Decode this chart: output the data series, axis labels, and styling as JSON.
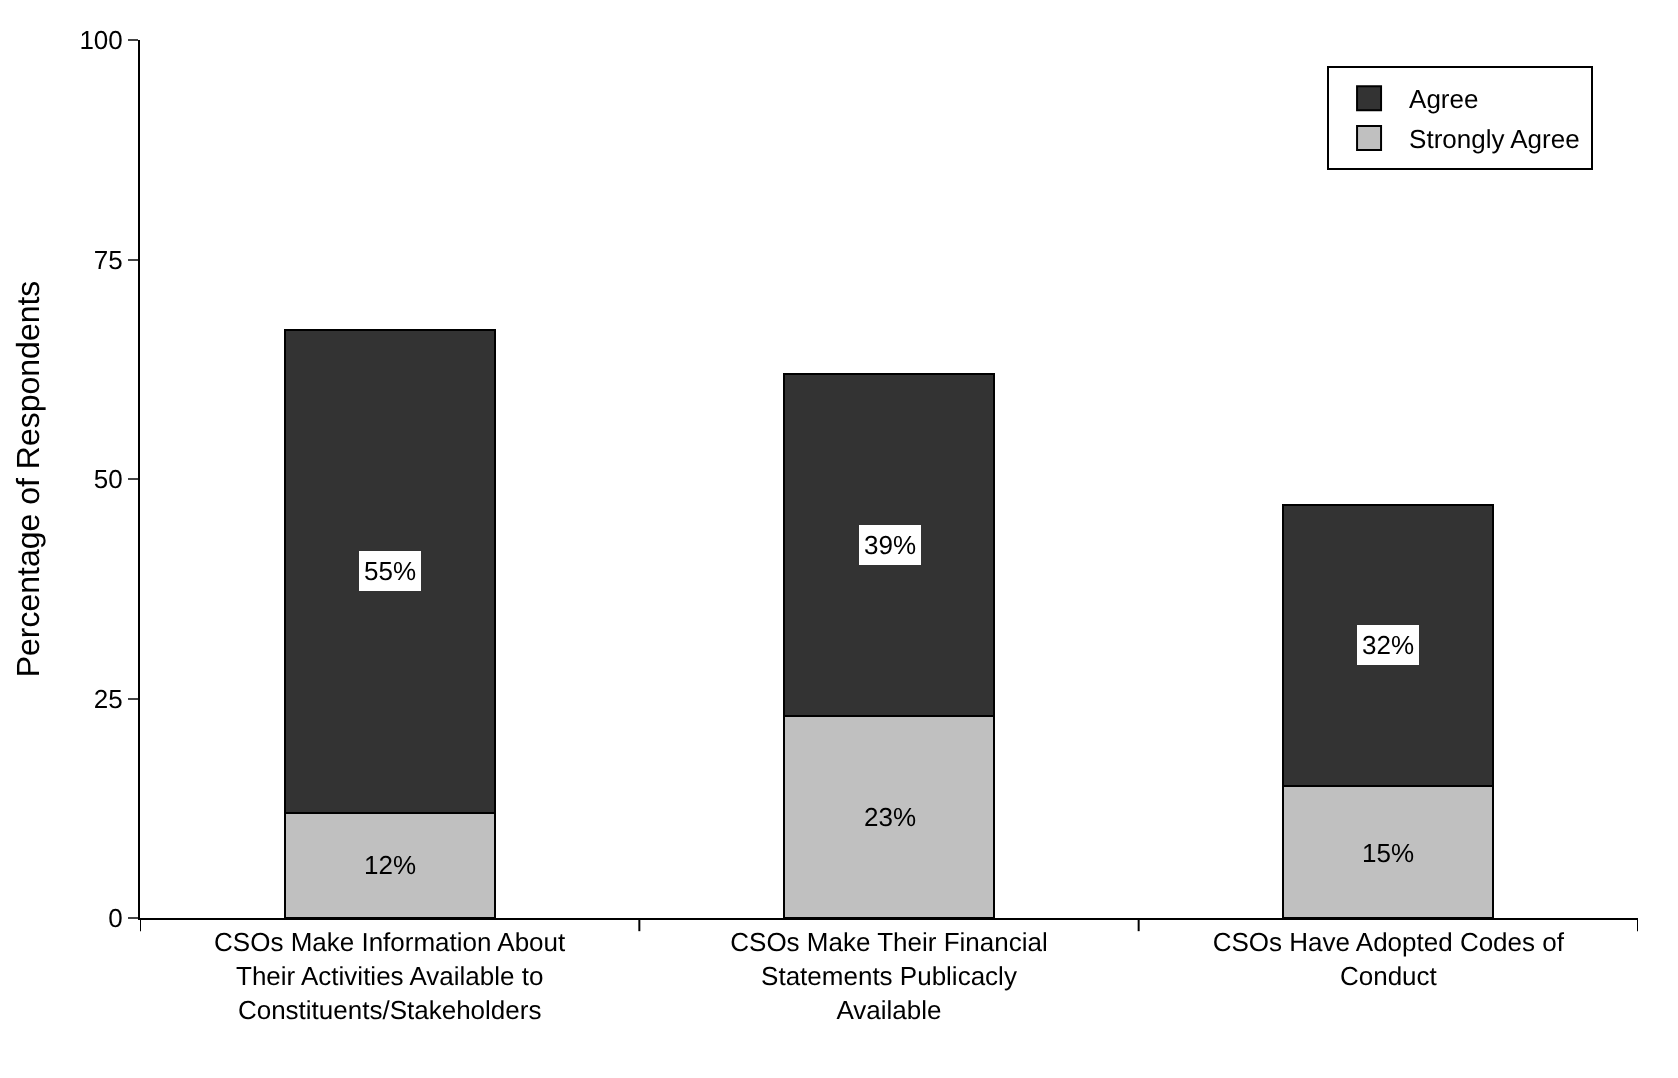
{
  "chart_data": {
    "type": "bar",
    "stacked": true,
    "ylabel": "Percentage of Respondents",
    "categories": [
      "CSOs Make Information About Their Activities Available to Constituents/Stakeholders",
      "CSOs Make Their Financial Statements Publicacly Available",
      "CSOs Have Adopted Codes of Conduct"
    ],
    "series": [
      {
        "name": "Strongly Agree",
        "color": "#c0c0c0",
        "values": [
          12,
          23,
          15
        ],
        "value_labels": [
          "12%",
          "23%",
          "15%"
        ]
      },
      {
        "name": "Agree",
        "color": "#333333",
        "values": [
          55,
          39,
          32
        ],
        "value_labels": [
          "55%",
          "39%",
          "32%"
        ]
      }
    ],
    "ylim": [
      0,
      100
    ],
    "yticks": [
      0,
      25,
      50,
      75,
      100
    ],
    "legend": "top right"
  }
}
